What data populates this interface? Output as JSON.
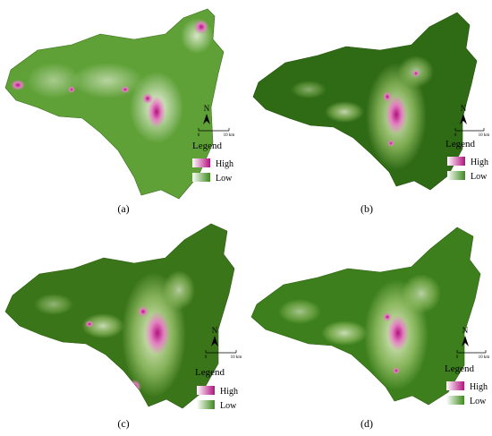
{
  "compass": {
    "letter": "N"
  },
  "scale_bar": {
    "start": "0",
    "end": "10 km"
  },
  "legend": {
    "title": "Legend",
    "high": "High",
    "low": "Low"
  },
  "panels": [
    {
      "label": "(a)"
    },
    {
      "label": "(b)"
    },
    {
      "label": "(c)"
    },
    {
      "label": "(d)"
    }
  ],
  "colors": {
    "background_a": "#5fa137",
    "background_b": "#2f6a15",
    "background_c": "#3a7519",
    "background_d": "#3d7f1c",
    "light": "#e8f0d0",
    "high": "#b3127e",
    "mid": "#e27dbf"
  }
}
